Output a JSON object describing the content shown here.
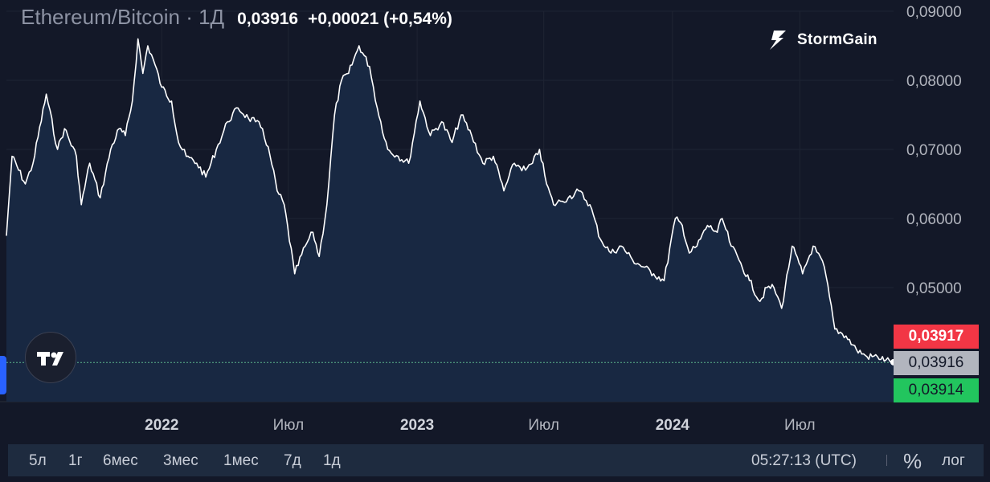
{
  "header": {
    "symbol": "Ethereum/Bitcoin · 1Д",
    "price": "0,03916",
    "change": "+0,00021 (+0,54%)"
  },
  "brand": {
    "name": "StormGain",
    "icon": "lightning-icon"
  },
  "tv_logo": {
    "icon": "tradingview-logo"
  },
  "price_badges": {
    "ask": {
      "label": "0,03917",
      "color": "#f23645"
    },
    "last": {
      "label": "0,03916",
      "color": "#b2b5be"
    },
    "bid": {
      "label": "0,03914",
      "color": "#22c55e"
    }
  },
  "bottom_bar": {
    "ranges": [
      "5л",
      "1г",
      "6мес",
      "3мес",
      "1мес",
      "7д",
      "1д"
    ],
    "time": "05:27:13 (UTC)",
    "percent_label": "%",
    "log_label": "лог"
  },
  "chart_data": {
    "type": "area",
    "title": "",
    "xlabel": "",
    "ylabel": "",
    "ylim": [
      0.036,
      0.09
    ],
    "xlim": [
      "2021-05-24",
      "2024-11-12"
    ],
    "y_ticks": [
      {
        "value": 0.09,
        "label": "0,09000"
      },
      {
        "value": 0.08,
        "label": "0,08000"
      },
      {
        "value": 0.07,
        "label": "0,07000"
      },
      {
        "value": 0.06,
        "label": "0,06000"
      },
      {
        "value": 0.05,
        "label": "0,05000"
      }
    ],
    "x_ticks": [
      {
        "date": "2022-01-01",
        "label": "2022",
        "bold": true
      },
      {
        "date": "2022-07-01",
        "label": "Июл",
        "bold": false
      },
      {
        "date": "2023-01-01",
        "label": "2023",
        "bold": true
      },
      {
        "date": "2023-07-01",
        "label": "Июл",
        "bold": false
      },
      {
        "date": "2024-01-01",
        "label": "2024",
        "bold": true
      },
      {
        "date": "2024-07-01",
        "label": "Июл",
        "bold": false
      }
    ],
    "grid": true,
    "line_color": "#ffffff",
    "fill_color": "#1a2d45",
    "current_price": 0.03916,
    "series": [
      {
        "x": [
          "2021-05-24",
          "2021-06-01",
          "2021-06-20",
          "2021-07-01",
          "2021-07-20",
          "2021-08-05",
          "2021-08-15",
          "2021-09-01",
          "2021-09-08",
          "2021-09-20",
          "2021-10-05",
          "2021-10-20",
          "2021-11-01",
          "2021-11-10",
          "2021-11-20",
          "2021-11-28",
          "2021-12-05",
          "2021-12-12",
          "2021-12-20",
          "2022-01-01",
          "2022-01-15",
          "2022-01-25",
          "2022-02-05",
          "2022-02-20",
          "2022-03-05",
          "2022-03-20",
          "2022-04-05",
          "2022-04-20",
          "2022-05-05",
          "2022-05-15",
          "2022-05-25",
          "2022-06-05",
          "2022-06-15",
          "2022-06-25",
          "2022-07-10",
          "2022-07-25",
          "2022-08-05",
          "2022-08-14",
          "2022-08-25",
          "2022-09-05",
          "2022-09-15",
          "2022-09-25",
          "2022-10-10",
          "2022-10-25",
          "2022-11-05",
          "2022-11-20",
          "2022-12-05",
          "2022-12-20",
          "2023-01-05",
          "2023-01-20",
          "2023-02-05",
          "2023-02-20",
          "2023-03-05",
          "2023-03-20",
          "2023-04-05",
          "2023-04-20",
          "2023-05-05",
          "2023-05-20",
          "2023-06-05",
          "2023-06-15",
          "2023-06-25",
          "2023-07-05",
          "2023-07-15",
          "2023-07-25",
          "2023-08-05",
          "2023-08-20",
          "2023-09-05",
          "2023-09-20",
          "2023-10-05",
          "2023-10-20",
          "2023-11-05",
          "2023-11-20",
          "2023-12-05",
          "2023-12-20",
          "2024-01-05",
          "2024-01-15",
          "2024-01-25",
          "2024-02-05",
          "2024-02-20",
          "2024-03-05",
          "2024-03-12",
          "2024-03-25",
          "2024-04-05",
          "2024-04-20",
          "2024-05-05",
          "2024-05-15",
          "2024-05-25",
          "2024-06-05",
          "2024-06-20",
          "2024-07-05",
          "2024-07-20",
          "2024-08-05",
          "2024-08-20",
          "2024-09-05",
          "2024-09-20",
          "2024-10-05",
          "2024-10-20",
          "2024-11-01",
          "2024-11-12"
        ],
        "y": [
          0.0575,
          0.069,
          0.065,
          0.068,
          0.078,
          0.07,
          0.073,
          0.069,
          0.062,
          0.068,
          0.063,
          0.07,
          0.073,
          0.072,
          0.077,
          0.086,
          0.081,
          0.085,
          0.083,
          0.079,
          0.077,
          0.071,
          0.069,
          0.068,
          0.066,
          0.07,
          0.074,
          0.076,
          0.0745,
          0.074,
          0.073,
          0.069,
          0.064,
          0.062,
          0.052,
          0.056,
          0.058,
          0.0545,
          0.062,
          0.075,
          0.08,
          0.081,
          0.085,
          0.082,
          0.076,
          0.07,
          0.069,
          0.068,
          0.077,
          0.072,
          0.074,
          0.071,
          0.075,
          0.072,
          0.068,
          0.069,
          0.064,
          0.068,
          0.067,
          0.068,
          0.07,
          0.065,
          0.062,
          0.0625,
          0.063,
          0.064,
          0.062,
          0.057,
          0.055,
          0.056,
          0.054,
          0.053,
          0.052,
          0.051,
          0.06,
          0.059,
          0.055,
          0.056,
          0.059,
          0.058,
          0.06,
          0.056,
          0.054,
          0.051,
          0.048,
          0.05,
          0.05,
          0.047,
          0.056,
          0.052,
          0.056,
          0.053,
          0.044,
          0.043,
          0.041,
          0.04,
          0.04,
          0.0395,
          0.0392
        ]
      }
    ]
  }
}
